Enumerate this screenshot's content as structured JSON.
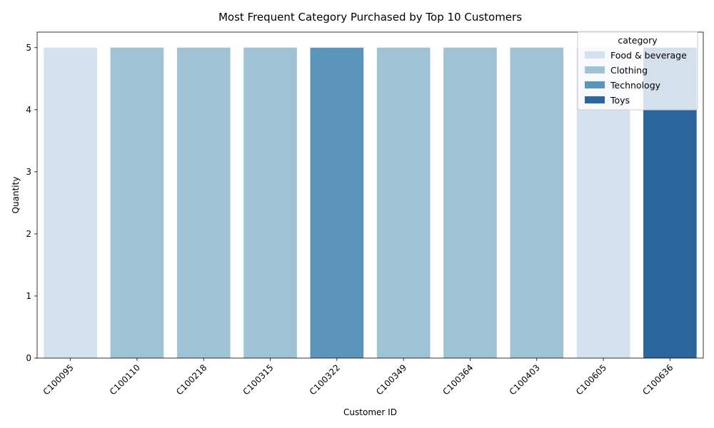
{
  "chart_data": {
    "type": "bar",
    "title": "Most Frequent Category Purchased by Top 10 Customers",
    "xlabel": "Customer ID",
    "ylabel": "Quantity",
    "ylim": [
      0,
      5.25
    ],
    "yticks": [
      0,
      1,
      2,
      3,
      4,
      5
    ],
    "grid": false,
    "categories": [
      "C100095",
      "C100110",
      "C100218",
      "C100315",
      "C100322",
      "C100349",
      "C100364",
      "C100403",
      "C100605",
      "C100636"
    ],
    "values": [
      5,
      5,
      5,
      5,
      5,
      5,
      5,
      5,
      5,
      5
    ],
    "bar_categories": [
      "Food & beverage",
      "Clothing",
      "Clothing",
      "Clothing",
      "Technology",
      "Clothing",
      "Clothing",
      "Clothing",
      "Food & beverage",
      "Toys"
    ],
    "legend": {
      "title": "category",
      "placement": "top-right",
      "entries": [
        {
          "label": "Food & beverage",
          "color": "#d4e1ef"
        },
        {
          "label": "Clothing",
          "color": "#9fc2d5"
        },
        {
          "label": "Technology",
          "color": "#5b95bb"
        },
        {
          "label": "Toys",
          "color": "#2a659c"
        }
      ]
    },
    "x_tick_rotation": 45
  }
}
